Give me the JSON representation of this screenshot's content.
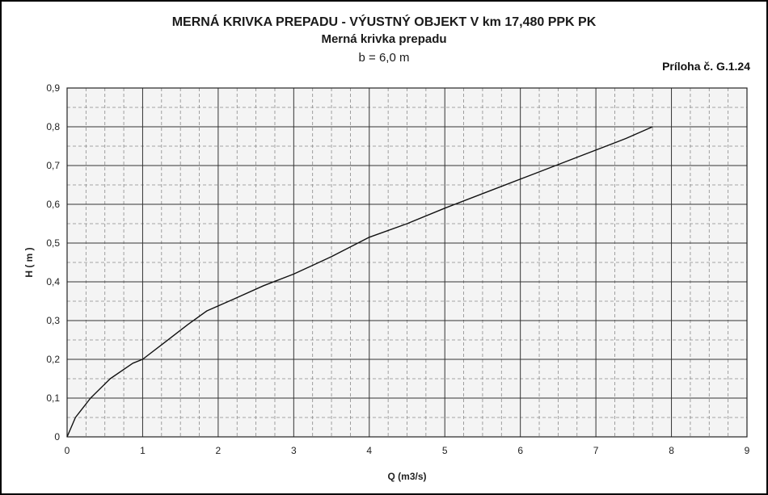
{
  "header": {
    "title": "MERNÁ KRIVKA PREPADU - VÝUSTNÝ OBJEKT V km 17,480 PPK PK",
    "subtitle": "Merná krivka prepadu",
    "parameter": "b = 6,0 m",
    "annex": "Príloha č. G.1.24"
  },
  "chart_data": {
    "type": "line",
    "title": "MERNÁ KRIVKA PREPADU - VÝUSTNÝ OBJEKT V km 17,480 PPK PK",
    "subtitle": "Merná krivka prepadu",
    "xlabel": "Q (m3/s)",
    "ylabel": "H ( m )",
    "xlim": [
      0,
      9
    ],
    "ylim": [
      0,
      0.9
    ],
    "x_ticks": [
      "0",
      "1",
      "2",
      "3",
      "4",
      "5",
      "6",
      "7",
      "8",
      "9"
    ],
    "y_ticks": [
      "0",
      "0,1",
      "0,2",
      "0,3",
      "0,4",
      "0,5",
      "0,6",
      "0,7",
      "0,8",
      "0,9"
    ],
    "grid": true,
    "legend": "none",
    "line_color": "#111111",
    "series": [
      {
        "x": [
          0,
          0.11,
          0.31,
          0.57,
          0.87,
          1.0,
          1.3,
          1.6,
          1.85,
          2.2,
          2.6,
          3.0,
          3.5,
          4.0,
          4.5,
          5.0,
          5.6,
          6.2,
          6.8,
          7.4,
          7.75
        ],
        "y": [
          0,
          0.05,
          0.1,
          0.15,
          0.19,
          0.2,
          0.245,
          0.29,
          0.325,
          0.355,
          0.39,
          0.42,
          0.465,
          0.515,
          0.55,
          0.59,
          0.635,
          0.68,
          0.725,
          0.77,
          0.8
        ]
      }
    ]
  }
}
